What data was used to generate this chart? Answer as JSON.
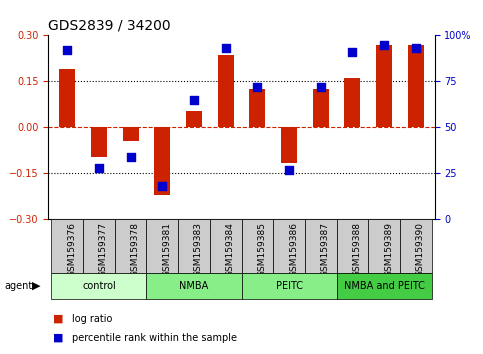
{
  "title": "GDS2839 / 34200",
  "samples": [
    "GSM159376",
    "GSM159377",
    "GSM159378",
    "GSM159381",
    "GSM159383",
    "GSM159384",
    "GSM159385",
    "GSM159386",
    "GSM159387",
    "GSM159388",
    "GSM159389",
    "GSM159390"
  ],
  "log_ratio": [
    0.19,
    -0.095,
    -0.045,
    -0.22,
    0.055,
    0.235,
    0.125,
    -0.115,
    0.125,
    0.16,
    0.27,
    0.27
  ],
  "percentile": [
    92,
    28,
    34,
    18,
    65,
    93,
    72,
    27,
    72,
    91,
    95,
    93
  ],
  "agent_groups": [
    {
      "label": "control",
      "start": 0,
      "end": 3,
      "color": "#ccffcc"
    },
    {
      "label": "NMBA",
      "start": 3,
      "end": 6,
      "color": "#88ee88"
    },
    {
      "label": "PEITC",
      "start": 6,
      "end": 9,
      "color": "#88ee88"
    },
    {
      "label": "NMBA and PEITC",
      "start": 9,
      "end": 12,
      "color": "#44cc44"
    }
  ],
  "ylim": [
    -0.3,
    0.3
  ],
  "yticks_left": [
    -0.3,
    -0.15,
    0.0,
    0.15,
    0.3
  ],
  "yticks_right": [
    0,
    25,
    50,
    75,
    100
  ],
  "bar_color": "#cc2200",
  "dot_color": "#0000cc",
  "sample_box_color": "#cccccc",
  "bar_width": 0.5,
  "dot_size": 28,
  "title_fontsize": 10,
  "tick_fontsize": 7,
  "label_fontsize": 7,
  "sample_fontsize": 6.5
}
